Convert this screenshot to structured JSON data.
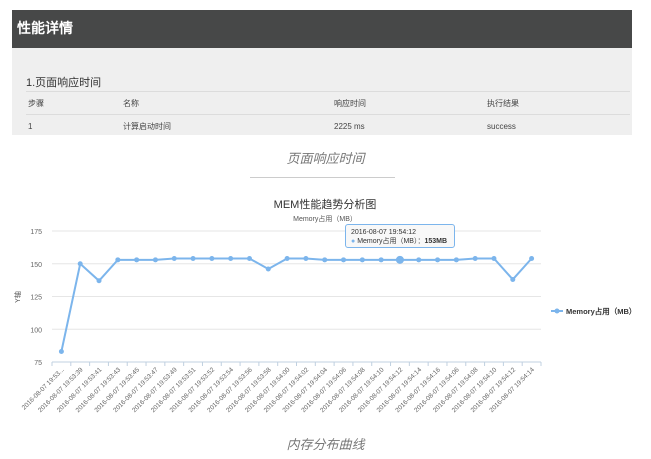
{
  "header": {
    "title": "性能详情"
  },
  "section": {
    "title": "1.页面响应时间",
    "columns": [
      "步骤",
      "名称",
      "响应时间",
      "执行结果"
    ],
    "rows": [
      [
        "1",
        "计算启动时间",
        "2225 ms",
        "success"
      ]
    ]
  },
  "caption1": "页面响应时间",
  "caption2": "内存分布曲线",
  "tooltip": {
    "time": "2016-08-07 19:54:12",
    "label": "Memory占用（MB）：",
    "value": "153MB"
  },
  "chart_data": {
    "type": "line",
    "title": "MEM性能趋势分析图",
    "subtitle": "Memory占用（MB）",
    "ylabel": "Y轴",
    "ylim": [
      75,
      175
    ],
    "yticks": [
      75,
      100,
      125,
      150,
      175
    ],
    "grid": true,
    "legend": "right",
    "color": "#7cb5ec",
    "categories": [
      "2016-08-07 19:53...",
      "2016-08-07 19:53:39",
      "2016-08-07 19:53:41",
      "2016-08-07 19:53:43",
      "2016-08-07 19:53:45",
      "2016-08-07 19:53:47",
      "2016-08-07 19:53:49",
      "2016-08-07 19:53:51",
      "2016-08-07 19:53:52",
      "2016-08-07 19:53:54",
      "2016-08-07 19:53:56",
      "2016-08-07 19:53:58",
      "2016-08-07 19:54:00",
      "2016-08-07 19:54:02",
      "2016-08-07 19:54:04",
      "2016-08-07 19:54:06",
      "2016-08-07 19:54:08",
      "2016-08-07 19:54:10",
      "2016-08-07 19:54:12",
      "2016-08-07 19:54:14",
      "2016-08-07 19:54:16",
      "2016-08-07 19:54:06",
      "2016-08-07 19:54:08",
      "2016-08-07 19:54:10",
      "2016-08-07 19:54:12",
      "2016-08-07 19:54:14"
    ],
    "series": [
      {
        "name": "Memory占用（MB）",
        "values": [
          83,
          150,
          137,
          153,
          153,
          153,
          154,
          154,
          154,
          154,
          154,
          146,
          154,
          154,
          153,
          153,
          153,
          153,
          153,
          153,
          153,
          153,
          154,
          154,
          138,
          154
        ]
      }
    ]
  }
}
